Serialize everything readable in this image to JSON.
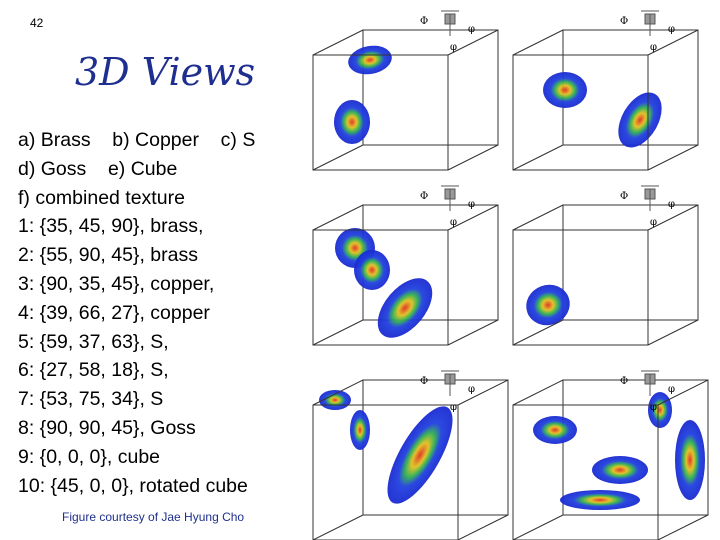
{
  "page_number": "42",
  "title": "3D Views",
  "lines": [
    "a) Brass    b) Copper    c) S",
    "d) Goss    e) Cube",
    "f) combined texture",
    "1: {35, 45, 90}, brass,",
    "2: {55, 90, 45}, brass",
    "3: {90, 35, 45}, copper,",
    "4: {39, 66, 27}, copper",
    "5: {59, 37, 63}, S,",
    "6: {27, 58, 18}, S,",
    "7: {53, 75, 34}, S",
    "8: {90, 90, 45}, Goss",
    "9: {0, 0, 0}, cube",
    "10: {45, 0, 0}, rotated cube"
  ],
  "credit": "Figure courtesy of Jae Hyung Cho",
  "panels": [
    {
      "axis_labels": [
        "Φ",
        "φ",
        "φ"
      ]
    },
    {
      "axis_labels": [
        "Φ",
        "φ",
        "φ"
      ]
    },
    {
      "axis_labels": [
        "Φ",
        "φ",
        "φ"
      ]
    },
    {
      "axis_labels": [
        "Φ",
        "φ",
        "φ"
      ]
    },
    {
      "axis_labels": [
        "Φ",
        "φ",
        "φ"
      ]
    },
    {
      "axis_labels": [
        "Φ",
        "φ",
        "φ"
      ]
    }
  ]
}
